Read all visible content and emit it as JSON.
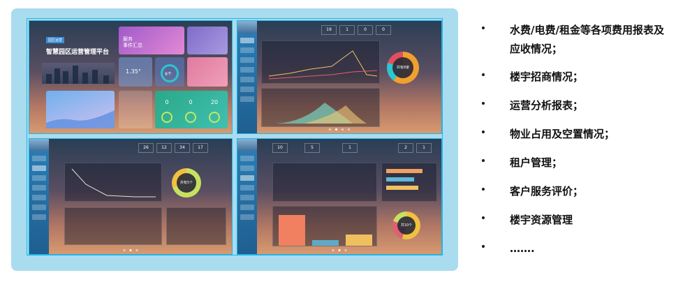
{
  "screenshots": [
    {
      "tag": "园区运营",
      "title": "智慧园区运营管理平台",
      "tile_a_label": "服务",
      "tile_a_big": "服务\n事件汇总",
      "tile_c_value": "1.35°",
      "tile_d_value": "9个",
      "tile_h_values": [
        "0",
        "0",
        "20"
      ]
    },
    {
      "stats": [
        "19",
        "1",
        "0",
        "0"
      ],
      "donut_label": "共有8家"
    },
    {
      "stats": [
        "26",
        "12",
        "34",
        "17"
      ],
      "donut_label": "共有5个"
    },
    {
      "stats": [
        "10",
        "5",
        "1",
        "2",
        "1"
      ],
      "donut_label": "共10个"
    }
  ],
  "list": [
    "水费/电费/租金等各项费用报表及应收情况；",
    "楼宇招商情况；",
    "运营分析报表；",
    "物业占用及空置情况；",
    "租户管理；",
    "客户服务评价；",
    "楼宇资源管理",
    "……."
  ],
  "colors": {
    "panel": "#a9dcef",
    "frame": "#1fb5e6",
    "text": "#111111"
  }
}
